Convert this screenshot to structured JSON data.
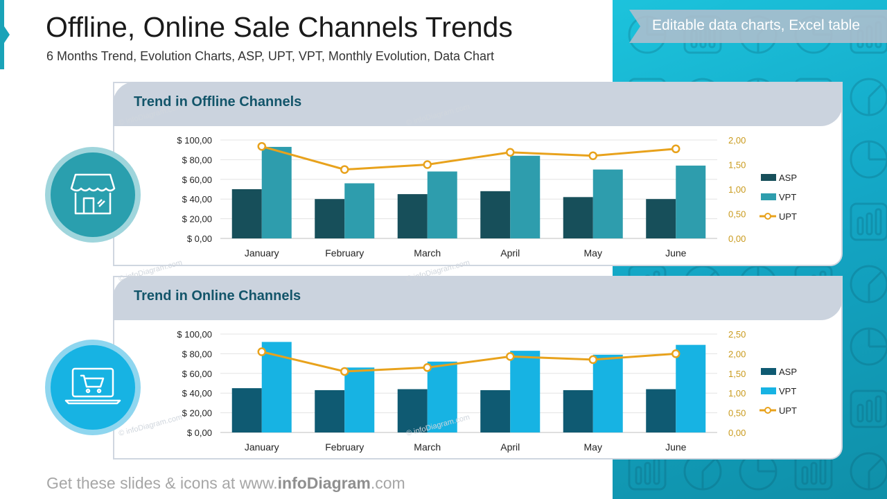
{
  "header": {
    "title": "Offline, Online Sale Channels Trends",
    "subtitle": "6 Months Trend, Evolution Charts, ASP, UPT, VPT, Monthly Evolution, Data Chart"
  },
  "tag": {
    "label": "Editable data charts, Excel table"
  },
  "footer": {
    "prefix": "Get these slides & icons at www.",
    "brand": "infoDiagram",
    "suffix": ".com"
  },
  "watermark": "© infoDiagram.com",
  "icons": {
    "offline": "store-icon",
    "online": "laptop-cart-icon"
  },
  "colors": {
    "teal_dark": "#174f5a",
    "teal_mid": "#2e9dad",
    "blue_dark": "#0f5a72",
    "blue_bright": "#17b3e3",
    "upt_line": "#e8a21c",
    "panel": "#17b2cf",
    "header_bar": "#cbd3de",
    "title_text": "#13556a"
  },
  "chart_data": [
    {
      "type": "bar",
      "title": "Trend in Offline Channels",
      "categories": [
        "January",
        "February",
        "March",
        "April",
        "May",
        "June"
      ],
      "series": [
        {
          "name": "ASP",
          "type": "bar",
          "axis": "left",
          "color": "#174f5a",
          "values": [
            50,
            40,
            45,
            48,
            42,
            40
          ]
        },
        {
          "name": "VPT",
          "type": "bar",
          "axis": "left",
          "color": "#2e9dad",
          "values": [
            93,
            56,
            68,
            84,
            70,
            74
          ]
        },
        {
          "name": "UPT",
          "type": "line",
          "axis": "right",
          "color": "#e8a21c",
          "values": [
            1.87,
            1.4,
            1.5,
            1.75,
            1.68,
            1.82
          ]
        }
      ],
      "y_left": {
        "min": 0,
        "max": 100,
        "ticks": [
          "$ 0,00",
          "$ 20,00",
          "$ 40,00",
          "$ 60,00",
          "$ 80,00",
          "$ 100,00"
        ]
      },
      "y_right": {
        "min": 0,
        "max": 2,
        "ticks": [
          "0,00",
          "0,50",
          "1,00",
          "1,50",
          "2,00"
        ]
      },
      "grid": true,
      "legend": "right"
    },
    {
      "type": "bar",
      "title": "Trend in Online Channels",
      "categories": [
        "January",
        "February",
        "March",
        "April",
        "May",
        "June"
      ],
      "series": [
        {
          "name": "ASP",
          "type": "bar",
          "axis": "left",
          "color": "#0f5a72",
          "values": [
            45,
            43,
            44,
            43,
            43,
            44
          ]
        },
        {
          "name": "VPT",
          "type": "bar",
          "axis": "left",
          "color": "#17b3e3",
          "values": [
            92,
            66,
            72,
            83,
            79,
            89
          ]
        },
        {
          "name": "UPT",
          "type": "line",
          "axis": "right",
          "color": "#e8a21c",
          "values": [
            2.05,
            1.55,
            1.65,
            1.93,
            1.85,
            2.0
          ]
        }
      ],
      "y_left": {
        "min": 0,
        "max": 100,
        "ticks": [
          "$ 0,00",
          "$ 20,00",
          "$ 40,00",
          "$ 60,00",
          "$ 80,00",
          "$ 100,00"
        ]
      },
      "y_right": {
        "min": 0,
        "max": 2.5,
        "ticks": [
          "0,00",
          "0,50",
          "1,00",
          "1,50",
          "2,00",
          "2,50"
        ]
      },
      "grid": true,
      "legend": "right"
    }
  ]
}
